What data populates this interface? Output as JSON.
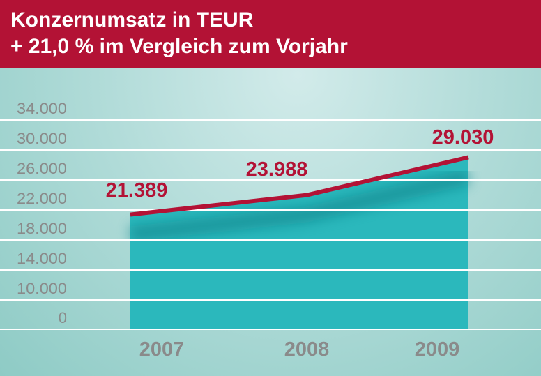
{
  "header": {
    "title": "Konzernumsatz in TEUR",
    "subtitle": "+ 21,0 % im Vergleich zum Vorjahr"
  },
  "colors": {
    "header": "#b31235",
    "area": "#2bb8bc",
    "line": "#b31235",
    "axis_text": "#8a8a8a",
    "background": "#a9d8d4"
  },
  "chart_data": {
    "type": "area",
    "title": "Konzernumsatz in TEUR",
    "subtitle": "+ 21,0 % im Vergleich zum Vorjahr",
    "categories": [
      "2007",
      "2008",
      "2009"
    ],
    "values": [
      21389,
      23988,
      29030
    ],
    "data_labels": [
      "21.389",
      "23.988",
      "29.030"
    ],
    "y_ticks": [
      0,
      10000,
      14000,
      18000,
      22000,
      26000,
      30000,
      34000
    ],
    "y_tick_labels": [
      "0",
      "10.000",
      "14.000",
      "18.000",
      "22.000",
      "26.000",
      "30.000",
      "34.000"
    ],
    "y_axis_break": true,
    "grid": true
  }
}
